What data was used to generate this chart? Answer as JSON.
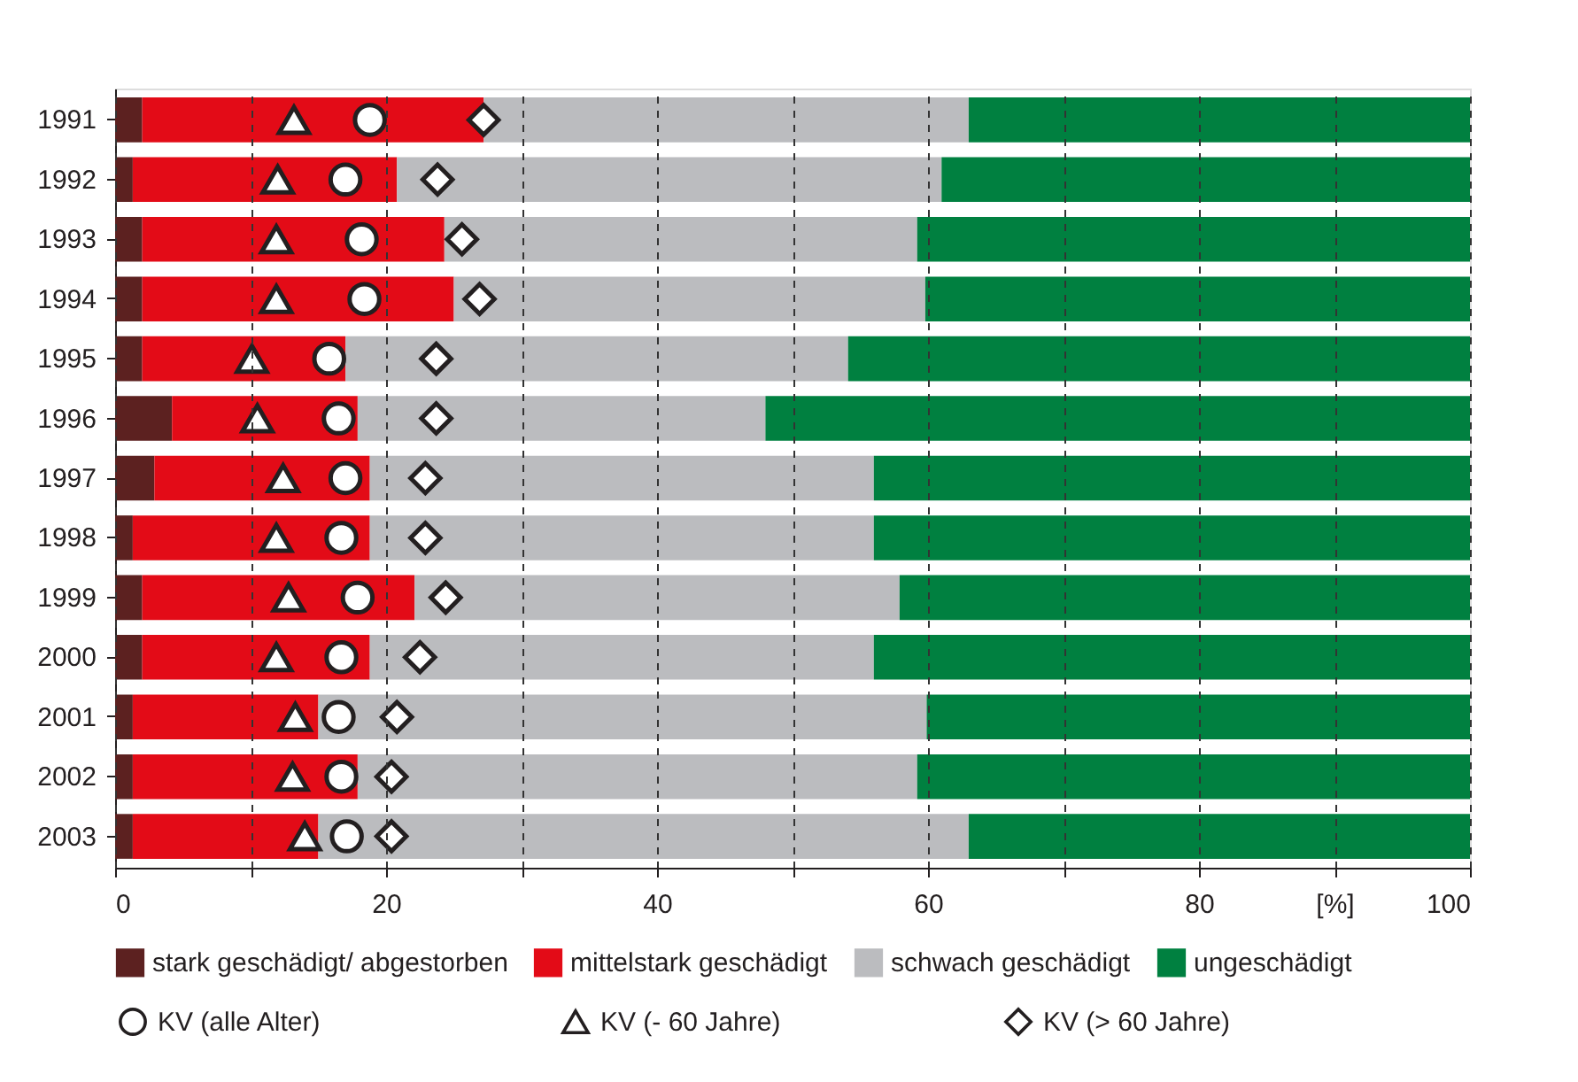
{
  "chart_data": {
    "type": "bar",
    "orientation": "horizontal",
    "stacked": true,
    "categories": [
      "1991",
      "1992",
      "1993",
      "1994",
      "1995",
      "1996",
      "1997",
      "1998",
      "1999",
      "2000",
      "2001",
      "2002",
      "2003"
    ],
    "series": [
      {
        "name": "stark geschädigt/ abgestorben",
        "color": "#5c2120",
        "values": [
          2.0,
          1.3,
          2.0,
          2.0,
          2.0,
          4.2,
          2.9,
          1.3,
          2.0,
          2.0,
          1.3,
          1.3,
          1.3
        ]
      },
      {
        "name": "mittelstark geschädigt",
        "color": "#e30b17",
        "values": [
          25.2,
          19.5,
          22.3,
          23.0,
          15.0,
          13.7,
          15.9,
          17.5,
          20.1,
          16.8,
          13.7,
          16.6,
          13.7
        ]
      },
      {
        "name": "schwach geschädigt",
        "color": "#bbbcbf",
        "values": [
          35.8,
          40.2,
          34.9,
          34.8,
          37.1,
          30.1,
          37.2,
          37.2,
          35.8,
          37.2,
          44.9,
          41.3,
          48.0
        ]
      },
      {
        "name": "ungeschädigt",
        "color": "#008040",
        "values": [
          37.0,
          39.0,
          40.8,
          40.2,
          45.9,
          52.0,
          44.0,
          44.0,
          42.1,
          44.0,
          40.1,
          40.8,
          37.0
        ]
      },
      {
        "name": "KV (alle Alter)",
        "type": "scatter",
        "marker": "circle",
        "color": "#231f20",
        "values": [
          18.8,
          17.0,
          18.2,
          18.4,
          15.8,
          16.5,
          17.0,
          16.7,
          17.9,
          16.7,
          16.5,
          16.7,
          17.1
        ]
      },
      {
        "name": "KV (- 60 Jahre)",
        "type": "scatter",
        "marker": "triangle",
        "color": "#231f20",
        "values": [
          13.2,
          12.0,
          11.9,
          11.9,
          10.1,
          10.5,
          12.4,
          11.9,
          12.8,
          11.9,
          13.3,
          13.1,
          14.0
        ]
      },
      {
        "name": "KV (> 60 Jahre)",
        "type": "scatter",
        "marker": "diamond",
        "color": "#231f20",
        "values": [
          27.2,
          23.8,
          25.6,
          26.9,
          23.7,
          23.7,
          22.9,
          22.9,
          24.4,
          22.5,
          20.8,
          20.4,
          20.4
        ]
      }
    ],
    "xlim": [
      0,
      100
    ],
    "xticks": [
      0,
      {
        "value": 10,
        "label": null
      },
      20,
      {
        "value": 30,
        "label": null
      },
      40,
      {
        "value": 50,
        "label": null
      },
      60,
      {
        "value": 70,
        "label": null
      },
      80,
      {
        "value": 90,
        "label": "[%]"
      },
      100
    ],
    "grid": "x",
    "legend": "bottom"
  }
}
